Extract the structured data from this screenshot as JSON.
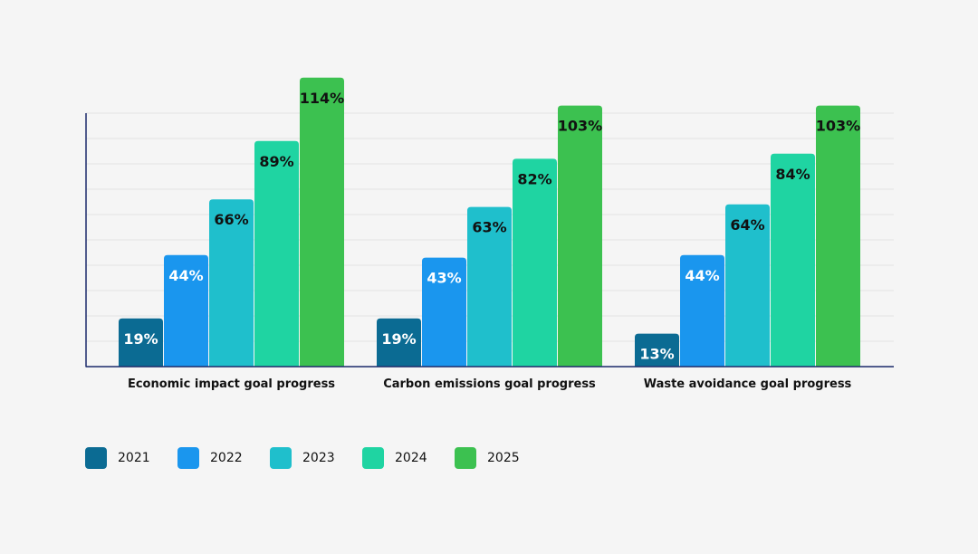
{
  "chart_data": {
    "type": "bar",
    "categories": [
      "Economic impact goal progress",
      "Carbon emissions goal progress",
      "Waste avoidance goal progress"
    ],
    "series": [
      {
        "name": "2021",
        "color": "#0b6b93",
        "values": [
          19,
          19,
          13
        ],
        "labels": [
          "19%",
          "19%",
          "13%"
        ],
        "label_color": "#ffffff"
      },
      {
        "name": "2022",
        "color": "#1a96ee",
        "values": [
          44,
          43,
          44
        ],
        "labels": [
          "44%",
          "43%",
          "44%"
        ],
        "label_color": "#ffffff"
      },
      {
        "name": "2023",
        "color": "#1fbfcc",
        "values": [
          66,
          63,
          64
        ],
        "labels": [
          "66%",
          "63%",
          "64%"
        ],
        "label_color": "#111111"
      },
      {
        "name": "2024",
        "color": "#1fd4a2",
        "values": [
          89,
          82,
          84
        ],
        "labels": [
          "89%",
          "82%",
          "84%"
        ],
        "label_color": "#111111"
      },
      {
        "name": "2025",
        "color": "#3cc150",
        "values": [
          114,
          103,
          103
        ],
        "labels": [
          "114%",
          "103%",
          "103%"
        ],
        "label_color": "#111111"
      }
    ],
    "ylim": [
      0,
      100
    ],
    "grid": true,
    "legend_placement": "bottom-left",
    "axis_color": "#1b2a6b",
    "grid_color": "#e3e3e3"
  }
}
